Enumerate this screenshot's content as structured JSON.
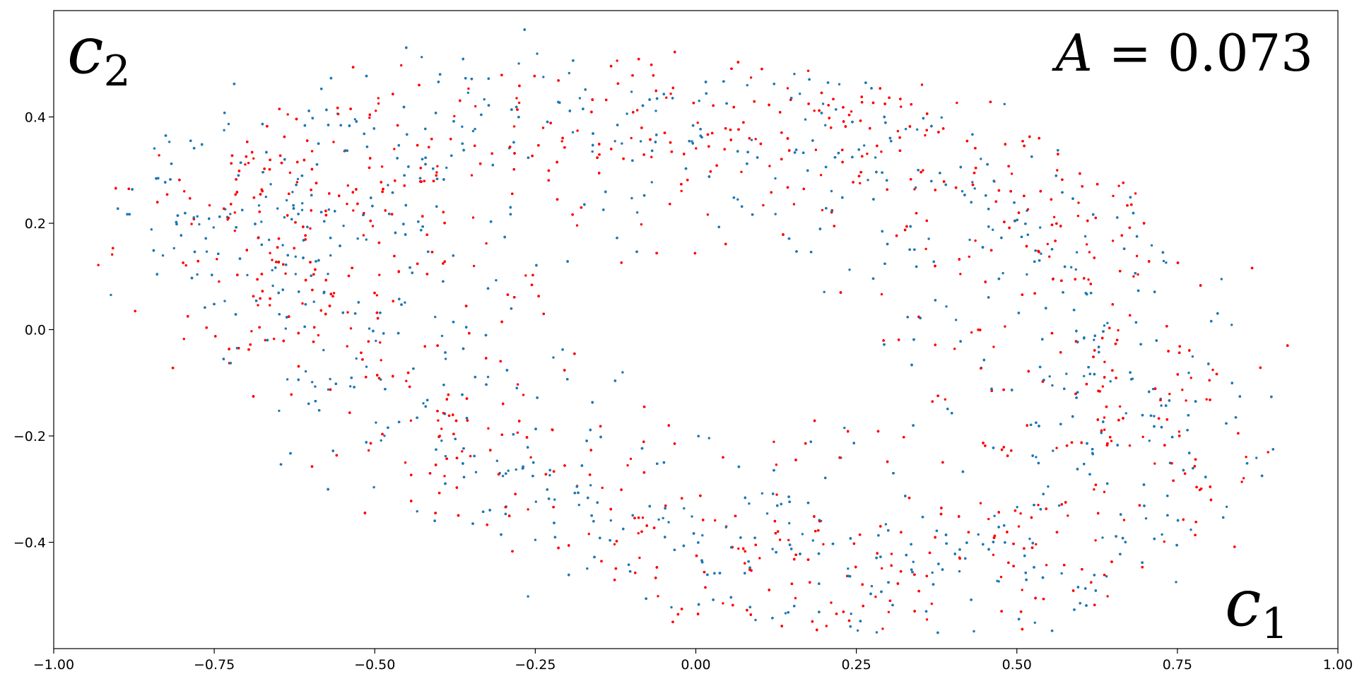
{
  "chart_data": {
    "type": "scatter",
    "title": "",
    "xlabel": "",
    "ylabel": "",
    "xlim": [
      -1.0,
      1.0
    ],
    "ylim": [
      -0.6,
      0.6
    ],
    "xticks": [
      -1.0,
      -0.75,
      -0.5,
      -0.25,
      0.0,
      0.25,
      0.5,
      0.75,
      1.0
    ],
    "xtick_labels": [
      "−1.00",
      "−0.75",
      "−0.50",
      "−0.25",
      "0.00",
      "0.25",
      "0.50",
      "0.75",
      "1.00"
    ],
    "yticks": [
      -0.4,
      -0.2,
      0.0,
      0.2,
      0.4
    ],
    "ytick_labels": [
      "−0.4",
      "−0.2",
      "0.0",
      "0.2",
      "0.4"
    ],
    "grid": false,
    "legend": "none",
    "annotations": {
      "corner_top_left": {
        "italic": "c",
        "subscript": "2"
      },
      "corner_bottom_right": {
        "italic": "c",
        "subscript": "1"
      },
      "top_right": {
        "italic": "A",
        "rest": " = 0.073"
      }
    },
    "series": [
      {
        "color": "#ff0000"
      },
      {
        "color": "#1f77b4"
      }
    ],
    "data_note": "dense point cloud (~tens of thousands of points) forming a tilted saddle-shaped annulus spanning x≈-0.92..0.92, y≈-0.55..0.55; interior thinner"
  }
}
